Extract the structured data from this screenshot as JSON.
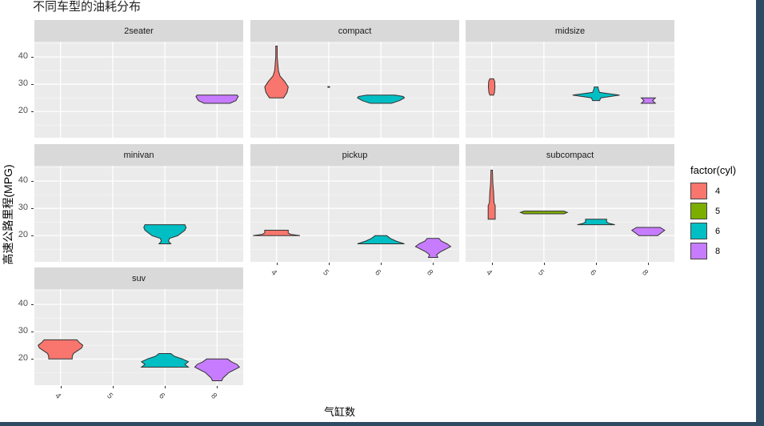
{
  "title": "不同车型的油耗分布",
  "axes": {
    "xlabel": "气缸数",
    "ylabel": "高速公路里程(MPG)",
    "yticks": [
      "20",
      "30",
      "40"
    ],
    "xticks": [
      "4",
      "5",
      "6",
      "8"
    ]
  },
  "legend": {
    "title": "factor(cyl)",
    "items": [
      {
        "label": "4",
        "color": "#F8766D"
      },
      {
        "label": "5",
        "color": "#7CAE00"
      },
      {
        "label": "6",
        "color": "#00BFC4"
      },
      {
        "label": "8",
        "color": "#C77CFF"
      }
    ]
  },
  "panels": [
    {
      "label": "2seater"
    },
    {
      "label": "compact"
    },
    {
      "label": "midsize"
    },
    {
      "label": "minivan"
    },
    {
      "label": "pickup"
    },
    {
      "label": "subcompact"
    },
    {
      "label": "suv"
    }
  ],
  "chart_data": {
    "type": "violin",
    "title": "不同车型的油耗分布",
    "xlabel": "气缸数",
    "ylabel": "高速公路里程(MPG)",
    "facet": "class",
    "fill": "factor(cyl)",
    "categories": [
      "4",
      "5",
      "6",
      "8"
    ],
    "ylim": [
      10.4,
      45.6
    ],
    "yticks": [
      20,
      30,
      40
    ],
    "grid": true,
    "legend_position": "right",
    "facets": [
      {
        "name": "2seater",
        "violins": [
          {
            "cyl": "8",
            "min": 23,
            "max": 26,
            "widths": [
              [
                23,
                0.55
              ],
              [
                24,
                0.8
              ],
              [
                25.5,
                0.9
              ],
              [
                26,
                0.85
              ]
            ]
          }
        ]
      },
      {
        "name": "compact",
        "violins": [
          {
            "cyl": "4",
            "min": 25,
            "max": 44,
            "widths": [
              [
                25,
                0.3
              ],
              [
                27,
                0.45
              ],
              [
                29,
                0.5
              ],
              [
                31,
                0.35
              ],
              [
                33,
                0.15
              ],
              [
                35,
                0.08
              ],
              [
                37,
                0.06
              ],
              [
                40,
                0.03
              ],
              [
                44,
                0.03
              ]
            ]
          },
          {
            "cyl": "5",
            "min": 29,
            "max": 29,
            "widths": [
              [
                29,
                0.02
              ]
            ]
          },
          {
            "cyl": "6",
            "min": 23,
            "max": 26,
            "widths": [
              [
                23,
                0.45
              ],
              [
                24,
                0.8
              ],
              [
                25,
                1.0
              ],
              [
                25.5,
                0.95
              ],
              [
                26,
                0.6
              ]
            ]
          }
        ]
      },
      {
        "name": "midsize",
        "violins": [
          {
            "cyl": "4",
            "min": 26,
            "max": 32,
            "widths": [
              [
                26,
                0.08
              ],
              [
                27,
                0.12
              ],
              [
                29,
                0.14
              ],
              [
                31,
                0.13
              ],
              [
                32,
                0.08
              ]
            ]
          },
          {
            "cyl": "6",
            "min": 24,
            "max": 29,
            "widths": [
              [
                24,
                0.15
              ],
              [
                25,
                0.2
              ],
              [
                26,
                1.0
              ],
              [
                27,
                0.15
              ],
              [
                28,
                0.1
              ],
              [
                29,
                0.08
              ]
            ]
          },
          {
            "cyl": "8",
            "min": 23,
            "max": 25,
            "widths": [
              [
                23,
                0.3
              ],
              [
                24,
                0.18
              ],
              [
                25,
                0.3
              ]
            ]
          }
        ]
      },
      {
        "name": "minivan",
        "violins": [
          {
            "cyl": "6",
            "min": 17,
            "max": 24,
            "widths": [
              [
                17,
                0.25
              ],
              [
                18,
                0.15
              ],
              [
                19,
                0.2
              ],
              [
                20,
                0.55
              ],
              [
                22,
                0.85
              ],
              [
                23,
                0.9
              ],
              [
                24,
                0.85
              ]
            ]
          }
        ]
      },
      {
        "name": "pickup",
        "violins": [
          {
            "cyl": "4",
            "min": 20,
            "max": 22,
            "widths": [
              [
                20,
                1.0
              ],
              [
                20.5,
                0.6
              ],
              [
                21,
                0.5
              ],
              [
                22,
                0.5
              ]
            ]
          },
          {
            "cyl": "6",
            "min": 17,
            "max": 20,
            "widths": [
              [
                17,
                1.0
              ],
              [
                18,
                0.65
              ],
              [
                19,
                0.4
              ],
              [
                20,
                0.25
              ]
            ]
          },
          {
            "cyl": "8",
            "min": 12,
            "max": 19,
            "widths": [
              [
                12,
                0.2
              ],
              [
                13,
                0.15
              ],
              [
                14,
                0.3
              ],
              [
                16,
                0.75
              ],
              [
                17,
                0.6
              ],
              [
                18,
                0.35
              ],
              [
                19,
                0.25
              ]
            ]
          }
        ]
      },
      {
        "name": "subcompact",
        "violins": [
          {
            "cyl": "4",
            "min": 26,
            "max": 44,
            "widths": [
              [
                26,
                0.15
              ],
              [
                31,
                0.15
              ],
              [
                32,
                0.1
              ],
              [
                36,
                0.08
              ],
              [
                39,
                0.05
              ],
              [
                44,
                0.03
              ]
            ]
          },
          {
            "cyl": "5",
            "min": 28,
            "max": 29,
            "widths": [
              [
                28,
                0.85
              ],
              [
                28.5,
                1.0
              ],
              [
                29,
                0.85
              ]
            ]
          },
          {
            "cyl": "6",
            "min": 24,
            "max": 26,
            "widths": [
              [
                24,
                0.8
              ],
              [
                24.5,
                0.55
              ],
              [
                25,
                0.45
              ],
              [
                26,
                0.45
              ]
            ]
          },
          {
            "cyl": "8",
            "min": 20,
            "max": 23,
            "widths": [
              [
                20,
                0.4
              ],
              [
                21,
                0.55
              ],
              [
                22,
                0.7
              ],
              [
                23,
                0.5
              ]
            ]
          }
        ]
      },
      {
        "name": "suv",
        "violins": [
          {
            "cyl": "4",
            "min": 20,
            "max": 27,
            "widths": [
              [
                20,
                0.5
              ],
              [
                21,
                0.5
              ],
              [
                22,
                0.55
              ],
              [
                24,
                0.9
              ],
              [
                25,
                0.95
              ],
              [
                26,
                0.8
              ],
              [
                27,
                0.7
              ]
            ]
          },
          {
            "cyl": "6",
            "min": 17,
            "max": 22,
            "widths": [
              [
                17,
                1.0
              ],
              [
                18,
                0.85
              ],
              [
                19,
                1.0
              ],
              [
                20,
                0.75
              ],
              [
                21,
                0.4
              ],
              [
                22,
                0.25
              ]
            ]
          },
          {
            "cyl": "8",
            "min": 12,
            "max": 20,
            "widths": [
              [
                12,
                0.2
              ],
              [
                13,
                0.25
              ],
              [
                15,
                0.5
              ],
              [
                17,
                0.95
              ],
              [
                18,
                0.85
              ],
              [
                19,
                0.6
              ],
              [
                20,
                0.45
              ]
            ]
          }
        ]
      }
    ]
  }
}
